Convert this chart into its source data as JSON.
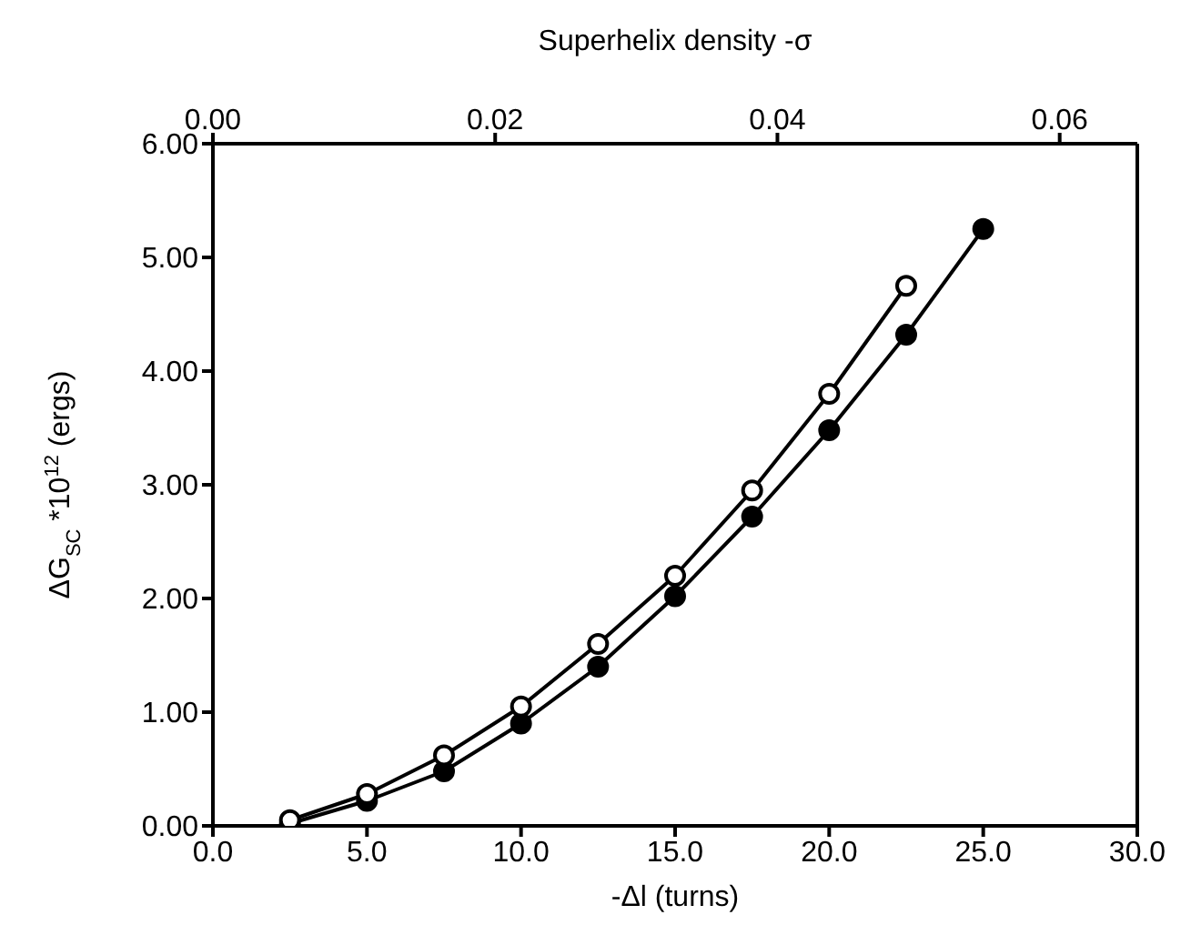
{
  "chart_data": {
    "type": "line",
    "xlabel": "-Δl (turns)",
    "ylabel": "ΔG$_{SC}$ *10$^{12}$ (ergs)",
    "x2label": "Superhelix density -σ",
    "x": [
      2.5,
      5,
      7.5,
      10,
      12.5,
      15,
      17.5,
      20,
      22.5,
      25
    ],
    "series": [
      {
        "color": "#000000",
        "values": [
          0.05,
          0.28,
          0.62,
          1.05,
          1.6,
          2.2,
          2.95,
          3.8,
          4.75,
          null
        ]
      },
      {
        "color": "#000000",
        "values": [
          0.02,
          0.22,
          0.48,
          0.9,
          1.4,
          2.02,
          2.72,
          3.48,
          4.32,
          5.25
        ]
      }
    ],
    "xlim": [
      0,
      30
    ],
    "xticks": [
      {
        "value": 0,
        "label": "0.0"
      },
      {
        "value": 5,
        "label": "5.0"
      },
      {
        "value": 10,
        "label": "10.0"
      },
      {
        "value": 15,
        "label": "15.0"
      },
      {
        "value": 20,
        "label": "20.0"
      },
      {
        "value": 25,
        "label": "25.0"
      },
      {
        "value": 30,
        "label": "30.0"
      }
    ],
    "x2lim": [
      0,
      0.0655
    ],
    "x2ticks": [
      {
        "value": 0,
        "label": "0.00"
      },
      {
        "value": 0.02,
        "label": "0.02"
      },
      {
        "value": 0.04,
        "label": "0.04"
      },
      {
        "value": 0.06,
        "label": "0.06"
      }
    ],
    "ylim": [
      0,
      6
    ],
    "yticks": [
      {
        "value": 0,
        "label": "0.00"
      },
      {
        "value": 1,
        "label": "1.00"
      },
      {
        "value": 2,
        "label": "2.00"
      },
      {
        "value": 3,
        "label": "3.00"
      },
      {
        "value": 4,
        "label": "4.00"
      },
      {
        "value": 5,
        "label": "5.00"
      },
      {
        "value": 6,
        "label": "6.00"
      }
    ],
    "marker": "circle",
    "line_style": "solid"
  }
}
